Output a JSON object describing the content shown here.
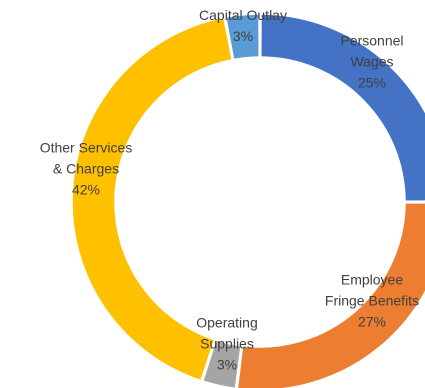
{
  "chart_data": {
    "type": "pie",
    "subtype": "donut",
    "title": "",
    "slices": [
      {
        "label_lines": [
          "Personnel",
          "Wages"
        ],
        "percent_label": "25%",
        "value": 25,
        "color": "#4472C4"
      },
      {
        "label_lines": [
          "Employee",
          "Fringe Benefits"
        ],
        "percent_label": "27%",
        "value": 27,
        "color": "#ED7D31"
      },
      {
        "label_lines": [
          "Operating",
          "Supplies"
        ],
        "percent_label": "3%",
        "value": 3,
        "color": "#A5A5A5"
      },
      {
        "label_lines": [
          "Other Services",
          "& Charges"
        ],
        "percent_label": "42%",
        "value": 42,
        "color": "#FFC000"
      },
      {
        "label_lines": [
          "Capital Outlay"
        ],
        "percent_label": "3%",
        "value": 3,
        "color": "#5B9BD5"
      }
    ]
  }
}
